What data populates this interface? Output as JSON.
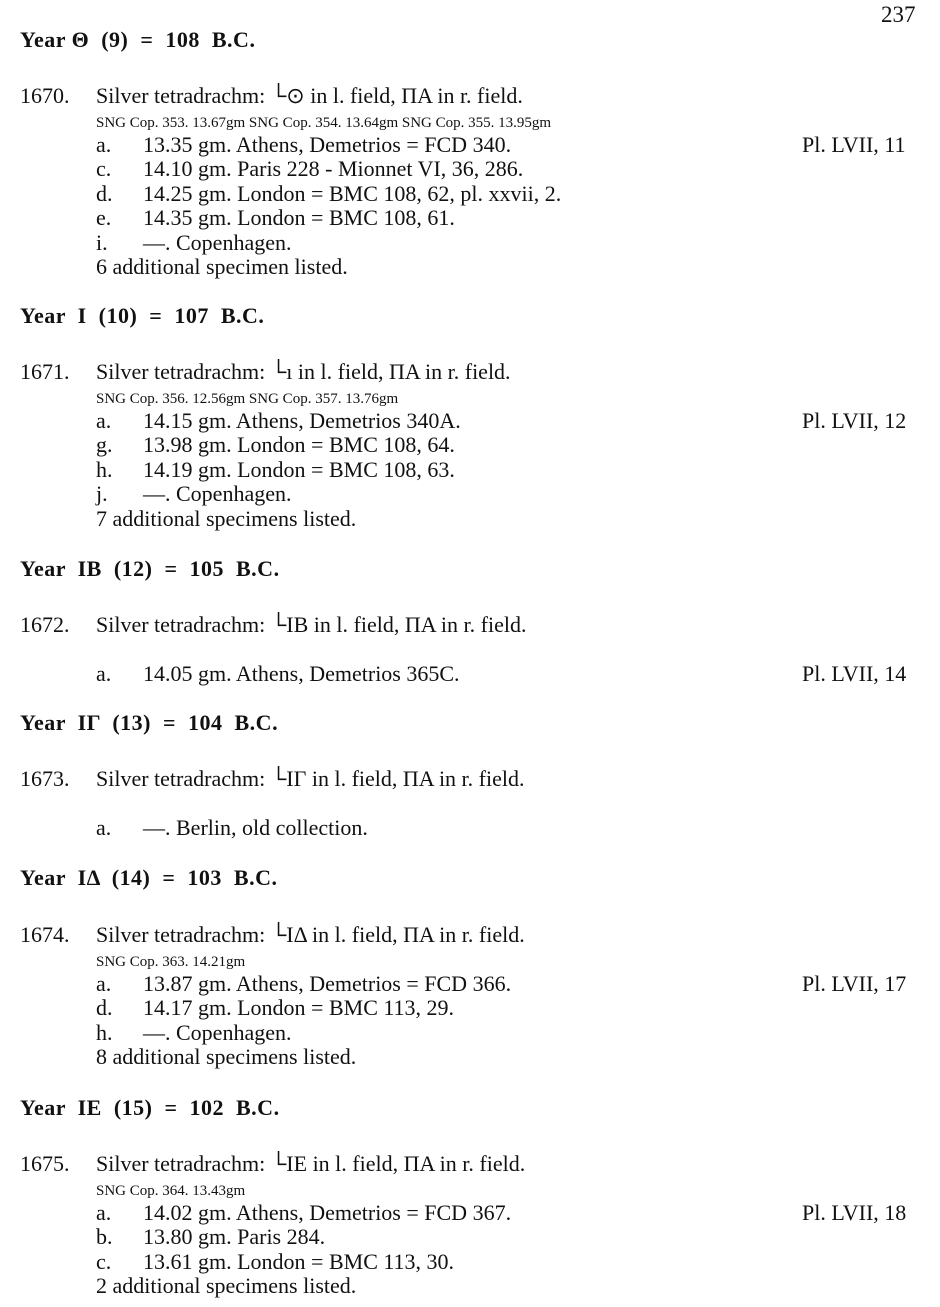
{
  "page_number": "237",
  "sections": [
    {
      "heading": "Year Θ  (9)  =  108  B.C.",
      "entry": {
        "number": "1670.",
        "description": "Silver tetradrachm: └⊙ in l. field, ΠΑ in r. field.",
        "sng": "SNG Cop. 353.  13.67gm   SNG Cop. 354.  13.64gm   SNG Cop. 355.  13.95gm",
        "items": [
          {
            "letter": "a.",
            "text": "13.35 gm. Athens, Demetrios = FCD 340.",
            "plate": "Pl. LVII, 11"
          },
          {
            "letter": "c.",
            "text": "14.10 gm. Paris 228 - Mionnet VI, 36, 286.",
            "plate": ""
          },
          {
            "letter": "d.",
            "text": "14.25 gm. London = BMC 108, 62, pl. xxvii, 2.",
            "plate": ""
          },
          {
            "letter": "e.",
            "text": "14.35 gm. London = BMC 108, 61.",
            "plate": ""
          },
          {
            "letter": "i.",
            "text": "—. Copenhagen.",
            "plate": ""
          }
        ],
        "additional": "6 additional specimen listed."
      }
    },
    {
      "heading": "Year  I  (10)  =  107  B.C.",
      "entry": {
        "number": "1671.",
        "description": "Silver tetradrachm: └ı in l. field, ΠΑ in r. field.",
        "sng": "SNG Cop. 356.  12.56gm   SNG Cop. 357.  13.76gm",
        "items": [
          {
            "letter": "a.",
            "text": "14.15 gm. Athens, Demetrios 340A.",
            "plate": "Pl. LVII, 12"
          },
          {
            "letter": "g.",
            "text": "13.98 gm. London = BMC 108, 64.",
            "plate": ""
          },
          {
            "letter": "h.",
            "text": "14.19 gm. London = BMC 108, 63.",
            "plate": ""
          },
          {
            "letter": "j.",
            "text": "—. Copenhagen.",
            "plate": ""
          }
        ],
        "additional": "7 additional specimens listed."
      }
    },
    {
      "heading": "Year  IB  (12)  =  105  B.C.",
      "entry": {
        "number": "1672.",
        "description": "Silver tetradrachm: └IB in l. field, ΠΑ in r. field.",
        "sng": "",
        "items": [
          {
            "letter": "a.",
            "text": "14.05 gm. Athens, Demetrios 365C.",
            "plate": "Pl. LVII, 14"
          }
        ],
        "additional": ""
      }
    },
    {
      "heading": "Year  IΓ  (13)  =  104  B.C.",
      "entry": {
        "number": "1673.",
        "description": "Silver tetradrachm: └IΓ in l. field, ΠΑ in r. field.",
        "sng": "",
        "items": [
          {
            "letter": "a.",
            "text": "—. Berlin, old collection.",
            "plate": ""
          }
        ],
        "additional": ""
      }
    },
    {
      "heading": "Year  IΔ  (14)  =  103  B.C.",
      "entry": {
        "number": "1674.",
        "description": "Silver tetradrachm: └IΔ in l. field, ΠΑ in r. field.",
        "sng": "SNG Cop. 363.  14.21gm",
        "items": [
          {
            "letter": "a.",
            "text": "13.87 gm. Athens, Demetrios = FCD 366.",
            "plate": "Pl. LVII, 17"
          },
          {
            "letter": "d.",
            "text": "14.17 gm. London = BMC 113, 29.",
            "plate": ""
          },
          {
            "letter": "h.",
            "text": "—. Copenhagen.",
            "plate": ""
          }
        ],
        "additional": "8 additional specimens listed."
      }
    },
    {
      "heading": "Year  IE  (15)  =  102  B.C.",
      "entry": {
        "number": "1675.",
        "description": "Silver tetradrachm: └IE in l. field, ΠΑ in r. field.",
        "sng": "SNG Cop. 364.  13.43gm",
        "items": [
          {
            "letter": "a.",
            "text": "14.02 gm. Athens, Demetrios = FCD 367.",
            "plate": "Pl. LVII, 18"
          },
          {
            "letter": "b.",
            "text": "13.80 gm. Paris 284.",
            "plate": ""
          },
          {
            "letter": "c.",
            "text": "13.61 gm. London = BMC 113, 30.",
            "plate": ""
          }
        ],
        "additional": "2 additional specimens listed."
      }
    }
  ]
}
